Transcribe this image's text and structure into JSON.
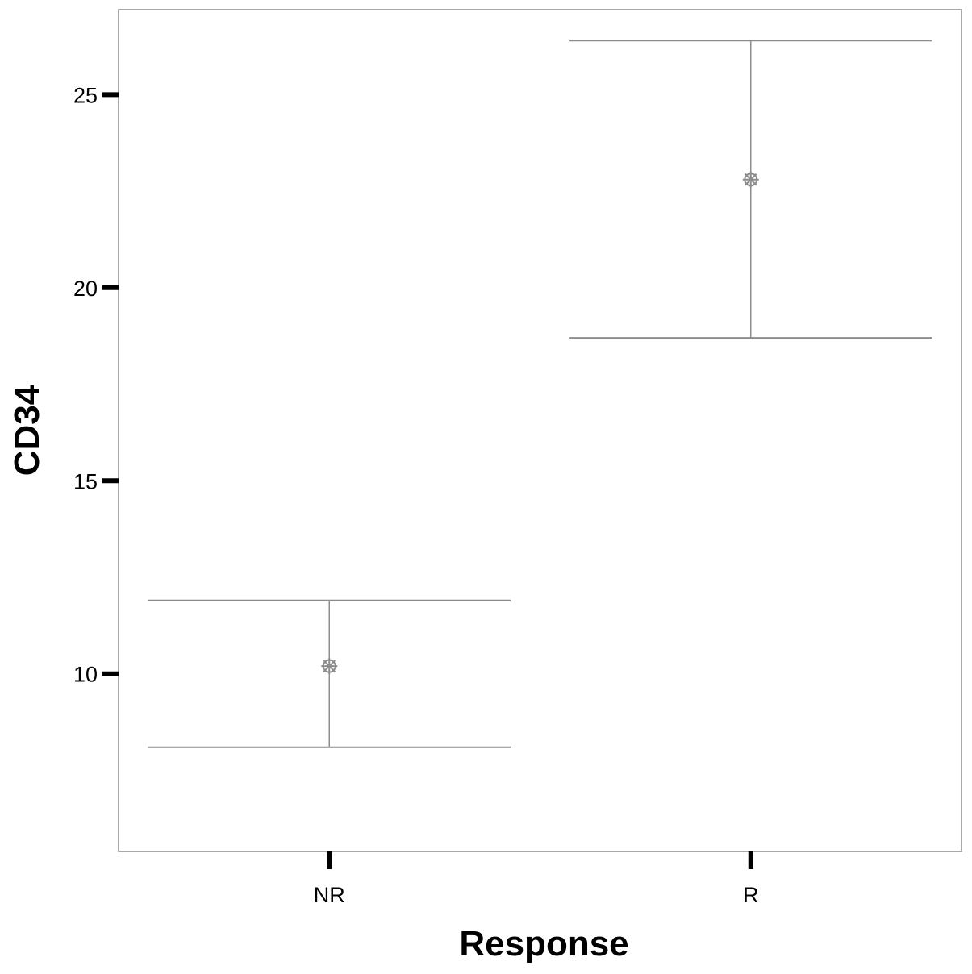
{
  "chart_data": {
    "type": "scatter",
    "xlabel": "Response",
    "ylabel": "CD34",
    "categories": [
      "NR",
      "R"
    ],
    "series": [
      {
        "points": [
          {
            "x": "NR",
            "y": 10.2,
            "lower": 8.1,
            "upper": 11.9
          },
          {
            "x": "R",
            "y": 22.8,
            "lower": 18.7,
            "upper": 26.4
          }
        ]
      }
    ],
    "yticks": [
      10,
      15,
      20,
      25
    ],
    "ytick_labels": [
      "10",
      "15",
      "20",
      "25"
    ],
    "ylim": [
      5.4,
      27.2
    ],
    "grid": false,
    "marker": "asterisk-circle",
    "colors": {
      "series": "#8c8c8c",
      "frame": "#8c8c8c",
      "ticks": "#000000"
    }
  }
}
